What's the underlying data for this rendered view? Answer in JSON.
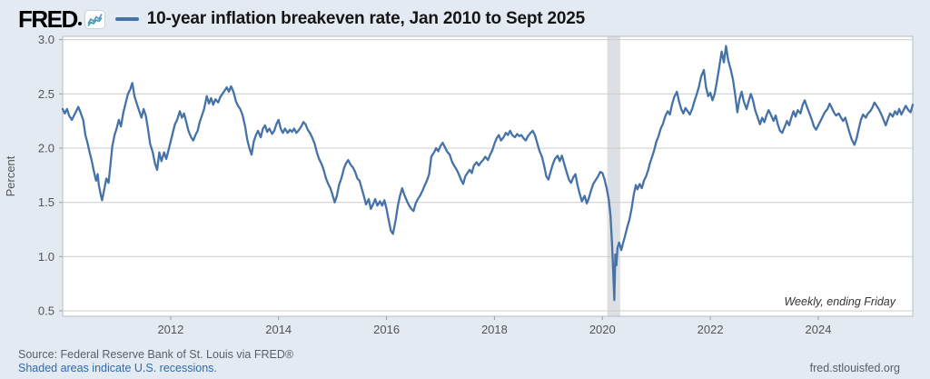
{
  "header": {
    "logo_text": "FRED",
    "title": "10-year inflation breakeven rate, Jan 2010 to Sept 2025"
  },
  "footer": {
    "source": "Source: Federal Reserve Bank of St. Louis via FRED®",
    "recession_note": "Shaded areas indicate U.S. recessions.",
    "url": "fred.stlouisfed.org"
  },
  "chart_data": {
    "type": "line",
    "title": "10-year inflation breakeven rate, Jan 2010 to Sept 2025",
    "series_name": "10-year inflation breakeven rate",
    "ylabel": "Percent",
    "annotation": "Weekly, ending Friday",
    "grid": true,
    "legend_position": "none",
    "xlim": [
      2010.0,
      2025.75
    ],
    "ylim": [
      0.45,
      3.03
    ],
    "yticks": [
      {
        "v": 3.0,
        "label": "3.0"
      },
      {
        "v": 2.5,
        "label": "2.5"
      },
      {
        "v": 2.0,
        "label": "2.0"
      },
      {
        "v": 1.5,
        "label": "1.5"
      },
      {
        "v": 1.0,
        "label": "1.0"
      },
      {
        "v": 0.5,
        "label": "0.5"
      }
    ],
    "xticks": [
      {
        "v": 2012,
        "label": "2012"
      },
      {
        "v": 2014,
        "label": "2014"
      },
      {
        "v": 2016,
        "label": "2016"
      },
      {
        "v": 2018,
        "label": "2018"
      },
      {
        "v": 2020,
        "label": "2020"
      },
      {
        "v": 2022,
        "label": "2022"
      },
      {
        "v": 2024,
        "label": "2024"
      }
    ],
    "recessions": [
      {
        "start": 2020.09,
        "end": 2020.33
      }
    ],
    "colors": {
      "line": "#4572a7",
      "grid": "#cccccc",
      "border": "#b6bcc3",
      "plot_bg": "#ffffff",
      "recession": "#dcdfe4",
      "tick": "#999999",
      "page_bg": "#e3eaf2",
      "link": "#2e6bad"
    },
    "points": [
      [
        2010.0,
        2.36
      ],
      [
        2010.04,
        2.32
      ],
      [
        2010.08,
        2.36
      ],
      [
        2010.12,
        2.3
      ],
      [
        2010.17,
        2.26
      ],
      [
        2010.21,
        2.3
      ],
      [
        2010.25,
        2.34
      ],
      [
        2010.29,
        2.38
      ],
      [
        2010.33,
        2.33
      ],
      [
        2010.38,
        2.26
      ],
      [
        2010.42,
        2.12
      ],
      [
        2010.46,
        2.05
      ],
      [
        2010.5,
        1.96
      ],
      [
        2010.54,
        1.88
      ],
      [
        2010.58,
        1.78
      ],
      [
        2010.62,
        1.7
      ],
      [
        2010.65,
        1.76
      ],
      [
        2010.67,
        1.66
      ],
      [
        2010.71,
        1.56
      ],
      [
        2010.73,
        1.52
      ],
      [
        2010.77,
        1.62
      ],
      [
        2010.81,
        1.72
      ],
      [
        2010.85,
        1.68
      ],
      [
        2010.88,
        1.82
      ],
      [
        2010.92,
        2.02
      ],
      [
        2010.96,
        2.12
      ],
      [
        2011.0,
        2.18
      ],
      [
        2011.04,
        2.26
      ],
      [
        2011.08,
        2.2
      ],
      [
        2011.12,
        2.32
      ],
      [
        2011.17,
        2.42
      ],
      [
        2011.21,
        2.5
      ],
      [
        2011.25,
        2.54
      ],
      [
        2011.29,
        2.6
      ],
      [
        2011.33,
        2.48
      ],
      [
        2011.38,
        2.4
      ],
      [
        2011.42,
        2.34
      ],
      [
        2011.46,
        2.28
      ],
      [
        2011.5,
        2.36
      ],
      [
        2011.54,
        2.3
      ],
      [
        2011.58,
        2.18
      ],
      [
        2011.62,
        2.04
      ],
      [
        2011.67,
        1.96
      ],
      [
        2011.71,
        1.86
      ],
      [
        2011.75,
        1.8
      ],
      [
        2011.79,
        1.96
      ],
      [
        2011.83,
        1.88
      ],
      [
        2011.88,
        1.96
      ],
      [
        2011.92,
        1.9
      ],
      [
        2011.96,
        1.98
      ],
      [
        2012.0,
        2.06
      ],
      [
        2012.04,
        2.14
      ],
      [
        2012.08,
        2.22
      ],
      [
        2012.12,
        2.26
      ],
      [
        2012.17,
        2.34
      ],
      [
        2012.21,
        2.28
      ],
      [
        2012.25,
        2.32
      ],
      [
        2012.29,
        2.24
      ],
      [
        2012.33,
        2.16
      ],
      [
        2012.38,
        2.1
      ],
      [
        2012.42,
        2.07
      ],
      [
        2012.46,
        2.12
      ],
      [
        2012.5,
        2.16
      ],
      [
        2012.54,
        2.24
      ],
      [
        2012.58,
        2.3
      ],
      [
        2012.62,
        2.36
      ],
      [
        2012.67,
        2.48
      ],
      [
        2012.71,
        2.41
      ],
      [
        2012.75,
        2.46
      ],
      [
        2012.79,
        2.4
      ],
      [
        2012.83,
        2.45
      ],
      [
        2012.88,
        2.42
      ],
      [
        2012.92,
        2.47
      ],
      [
        2012.96,
        2.5
      ],
      [
        2013.0,
        2.53
      ],
      [
        2013.04,
        2.56
      ],
      [
        2013.08,
        2.52
      ],
      [
        2013.12,
        2.57
      ],
      [
        2013.17,
        2.51
      ],
      [
        2013.21,
        2.43
      ],
      [
        2013.25,
        2.39
      ],
      [
        2013.29,
        2.36
      ],
      [
        2013.33,
        2.31
      ],
      [
        2013.38,
        2.2
      ],
      [
        2013.42,
        2.08
      ],
      [
        2013.46,
        2.0
      ],
      [
        2013.5,
        1.94
      ],
      [
        2013.54,
        2.06
      ],
      [
        2013.58,
        2.12
      ],
      [
        2013.62,
        2.16
      ],
      [
        2013.67,
        2.1
      ],
      [
        2013.71,
        2.18
      ],
      [
        2013.75,
        2.21
      ],
      [
        2013.79,
        2.15
      ],
      [
        2013.83,
        2.18
      ],
      [
        2013.88,
        2.13
      ],
      [
        2013.92,
        2.16
      ],
      [
        2013.96,
        2.22
      ],
      [
        2014.0,
        2.26
      ],
      [
        2014.04,
        2.18
      ],
      [
        2014.08,
        2.14
      ],
      [
        2014.12,
        2.18
      ],
      [
        2014.17,
        2.14
      ],
      [
        2014.21,
        2.17
      ],
      [
        2014.25,
        2.15
      ],
      [
        2014.29,
        2.18
      ],
      [
        2014.33,
        2.14
      ],
      [
        2014.38,
        2.17
      ],
      [
        2014.42,
        2.2
      ],
      [
        2014.46,
        2.24
      ],
      [
        2014.5,
        2.22
      ],
      [
        2014.54,
        2.17
      ],
      [
        2014.58,
        2.14
      ],
      [
        2014.62,
        2.1
      ],
      [
        2014.67,
        2.04
      ],
      [
        2014.71,
        1.96
      ],
      [
        2014.75,
        1.9
      ],
      [
        2014.79,
        1.86
      ],
      [
        2014.83,
        1.81
      ],
      [
        2014.88,
        1.72
      ],
      [
        2014.92,
        1.67
      ],
      [
        2014.96,
        1.63
      ],
      [
        2015.0,
        1.57
      ],
      [
        2015.04,
        1.5
      ],
      [
        2015.08,
        1.56
      ],
      [
        2015.12,
        1.66
      ],
      [
        2015.17,
        1.73
      ],
      [
        2015.21,
        1.81
      ],
      [
        2015.25,
        1.86
      ],
      [
        2015.29,
        1.89
      ],
      [
        2015.33,
        1.85
      ],
      [
        2015.38,
        1.82
      ],
      [
        2015.42,
        1.78
      ],
      [
        2015.46,
        1.72
      ],
      [
        2015.5,
        1.7
      ],
      [
        2015.54,
        1.63
      ],
      [
        2015.58,
        1.56
      ],
      [
        2015.62,
        1.48
      ],
      [
        2015.67,
        1.53
      ],
      [
        2015.71,
        1.44
      ],
      [
        2015.75,
        1.48
      ],
      [
        2015.79,
        1.53
      ],
      [
        2015.83,
        1.47
      ],
      [
        2015.88,
        1.51
      ],
      [
        2015.92,
        1.47
      ],
      [
        2015.96,
        1.52
      ],
      [
        2016.0,
        1.44
      ],
      [
        2016.04,
        1.34
      ],
      [
        2016.08,
        1.24
      ],
      [
        2016.12,
        1.21
      ],
      [
        2016.17,
        1.34
      ],
      [
        2016.21,
        1.47
      ],
      [
        2016.25,
        1.56
      ],
      [
        2016.29,
        1.63
      ],
      [
        2016.33,
        1.57
      ],
      [
        2016.38,
        1.51
      ],
      [
        2016.42,
        1.47
      ],
      [
        2016.46,
        1.44
      ],
      [
        2016.5,
        1.42
      ],
      [
        2016.54,
        1.49
      ],
      [
        2016.58,
        1.53
      ],
      [
        2016.62,
        1.56
      ],
      [
        2016.67,
        1.61
      ],
      [
        2016.71,
        1.66
      ],
      [
        2016.75,
        1.7
      ],
      [
        2016.79,
        1.76
      ],
      [
        2016.83,
        1.92
      ],
      [
        2016.88,
        1.96
      ],
      [
        2016.92,
        2.0
      ],
      [
        2016.96,
        1.97
      ],
      [
        2017.0,
        2.02
      ],
      [
        2017.04,
        2.05
      ],
      [
        2017.08,
        2.01
      ],
      [
        2017.12,
        1.97
      ],
      [
        2017.17,
        1.94
      ],
      [
        2017.21,
        1.88
      ],
      [
        2017.25,
        1.84
      ],
      [
        2017.29,
        1.81
      ],
      [
        2017.33,
        1.77
      ],
      [
        2017.38,
        1.71
      ],
      [
        2017.42,
        1.67
      ],
      [
        2017.46,
        1.74
      ],
      [
        2017.5,
        1.77
      ],
      [
        2017.54,
        1.8
      ],
      [
        2017.58,
        1.77
      ],
      [
        2017.62,
        1.84
      ],
      [
        2017.67,
        1.87
      ],
      [
        2017.71,
        1.84
      ],
      [
        2017.75,
        1.87
      ],
      [
        2017.79,
        1.89
      ],
      [
        2017.83,
        1.92
      ],
      [
        2017.88,
        1.89
      ],
      [
        2017.92,
        1.94
      ],
      [
        2017.96,
        1.98
      ],
      [
        2018.0,
        2.04
      ],
      [
        2018.04,
        2.09
      ],
      [
        2018.08,
        2.12
      ],
      [
        2018.12,
        2.07
      ],
      [
        2018.17,
        2.1
      ],
      [
        2018.21,
        2.14
      ],
      [
        2018.25,
        2.12
      ],
      [
        2018.29,
        2.16
      ],
      [
        2018.33,
        2.12
      ],
      [
        2018.38,
        2.1
      ],
      [
        2018.42,
        2.13
      ],
      [
        2018.46,
        2.11
      ],
      [
        2018.5,
        2.12
      ],
      [
        2018.54,
        2.09
      ],
      [
        2018.58,
        2.07
      ],
      [
        2018.62,
        2.11
      ],
      [
        2018.67,
        2.14
      ],
      [
        2018.71,
        2.16
      ],
      [
        2018.75,
        2.12
      ],
      [
        2018.79,
        2.05
      ],
      [
        2018.83,
        1.98
      ],
      [
        2018.88,
        1.92
      ],
      [
        2018.92,
        1.84
      ],
      [
        2018.96,
        1.74
      ],
      [
        2019.0,
        1.71
      ],
      [
        2019.04,
        1.78
      ],
      [
        2019.08,
        1.85
      ],
      [
        2019.12,
        1.9
      ],
      [
        2019.17,
        1.93
      ],
      [
        2019.21,
        1.88
      ],
      [
        2019.25,
        1.93
      ],
      [
        2019.29,
        1.86
      ],
      [
        2019.33,
        1.79
      ],
      [
        2019.38,
        1.71
      ],
      [
        2019.42,
        1.68
      ],
      [
        2019.46,
        1.73
      ],
      [
        2019.5,
        1.76
      ],
      [
        2019.54,
        1.66
      ],
      [
        2019.58,
        1.58
      ],
      [
        2019.62,
        1.51
      ],
      [
        2019.67,
        1.56
      ],
      [
        2019.71,
        1.49
      ],
      [
        2019.75,
        1.54
      ],
      [
        2019.79,
        1.61
      ],
      [
        2019.83,
        1.67
      ],
      [
        2019.88,
        1.71
      ],
      [
        2019.92,
        1.74
      ],
      [
        2019.96,
        1.78
      ],
      [
        2020.0,
        1.77
      ],
      [
        2020.04,
        1.71
      ],
      [
        2020.08,
        1.63
      ],
      [
        2020.12,
        1.52
      ],
      [
        2020.15,
        1.38
      ],
      [
        2020.18,
        1.1
      ],
      [
        2020.21,
        0.73
      ],
      [
        2020.22,
        0.6
      ],
      [
        2020.24,
        1.02
      ],
      [
        2020.26,
        0.92
      ],
      [
        2020.28,
        1.08
      ],
      [
        2020.31,
        1.13
      ],
      [
        2020.35,
        1.06
      ],
      [
        2020.38,
        1.12
      ],
      [
        2020.42,
        1.19
      ],
      [
        2020.46,
        1.27
      ],
      [
        2020.5,
        1.34
      ],
      [
        2020.54,
        1.44
      ],
      [
        2020.58,
        1.57
      ],
      [
        2020.62,
        1.66
      ],
      [
        2020.65,
        1.62
      ],
      [
        2020.69,
        1.67
      ],
      [
        2020.73,
        1.63
      ],
      [
        2020.77,
        1.7
      ],
      [
        2020.81,
        1.74
      ],
      [
        2020.85,
        1.8
      ],
      [
        2020.88,
        1.86
      ],
      [
        2020.92,
        1.92
      ],
      [
        2020.96,
        1.98
      ],
      [
        2021.0,
        2.06
      ],
      [
        2021.04,
        2.11
      ],
      [
        2021.08,
        2.18
      ],
      [
        2021.12,
        2.22
      ],
      [
        2021.17,
        2.3
      ],
      [
        2021.21,
        2.34
      ],
      [
        2021.25,
        2.31
      ],
      [
        2021.29,
        2.4
      ],
      [
        2021.33,
        2.47
      ],
      [
        2021.38,
        2.52
      ],
      [
        2021.42,
        2.43
      ],
      [
        2021.46,
        2.36
      ],
      [
        2021.5,
        2.32
      ],
      [
        2021.54,
        2.37
      ],
      [
        2021.58,
        2.34
      ],
      [
        2021.62,
        2.31
      ],
      [
        2021.67,
        2.37
      ],
      [
        2021.71,
        2.44
      ],
      [
        2021.75,
        2.5
      ],
      [
        2021.79,
        2.57
      ],
      [
        2021.83,
        2.66
      ],
      [
        2021.88,
        2.72
      ],
      [
        2021.92,
        2.56
      ],
      [
        2021.96,
        2.48
      ],
      [
        2022.0,
        2.51
      ],
      [
        2022.04,
        2.44
      ],
      [
        2022.08,
        2.5
      ],
      [
        2022.12,
        2.61
      ],
      [
        2022.17,
        2.76
      ],
      [
        2022.21,
        2.89
      ],
      [
        2022.25,
        2.79
      ],
      [
        2022.29,
        2.94
      ],
      [
        2022.33,
        2.81
      ],
      [
        2022.38,
        2.72
      ],
      [
        2022.42,
        2.63
      ],
      [
        2022.46,
        2.49
      ],
      [
        2022.5,
        2.33
      ],
      [
        2022.54,
        2.45
      ],
      [
        2022.58,
        2.52
      ],
      [
        2022.62,
        2.43
      ],
      [
        2022.67,
        2.36
      ],
      [
        2022.71,
        2.43
      ],
      [
        2022.75,
        2.5
      ],
      [
        2022.79,
        2.44
      ],
      [
        2022.83,
        2.35
      ],
      [
        2022.88,
        2.28
      ],
      [
        2022.92,
        2.22
      ],
      [
        2022.96,
        2.28
      ],
      [
        2023.0,
        2.24
      ],
      [
        2023.04,
        2.3
      ],
      [
        2023.08,
        2.35
      ],
      [
        2023.12,
        2.31
      ],
      [
        2023.17,
        2.25
      ],
      [
        2023.21,
        2.3
      ],
      [
        2023.25,
        2.22
      ],
      [
        2023.29,
        2.16
      ],
      [
        2023.33,
        2.14
      ],
      [
        2023.38,
        2.2
      ],
      [
        2023.42,
        2.25
      ],
      [
        2023.46,
        2.21
      ],
      [
        2023.5,
        2.28
      ],
      [
        2023.54,
        2.34
      ],
      [
        2023.58,
        2.29
      ],
      [
        2023.62,
        2.35
      ],
      [
        2023.67,
        2.32
      ],
      [
        2023.71,
        2.4
      ],
      [
        2023.75,
        2.44
      ],
      [
        2023.79,
        2.38
      ],
      [
        2023.83,
        2.33
      ],
      [
        2023.88,
        2.26
      ],
      [
        2023.92,
        2.2
      ],
      [
        2023.96,
        2.17
      ],
      [
        2024.0,
        2.21
      ],
      [
        2024.04,
        2.25
      ],
      [
        2024.08,
        2.29
      ],
      [
        2024.12,
        2.33
      ],
      [
        2024.17,
        2.36
      ],
      [
        2024.21,
        2.41
      ],
      [
        2024.25,
        2.37
      ],
      [
        2024.29,
        2.33
      ],
      [
        2024.33,
        2.3
      ],
      [
        2024.38,
        2.32
      ],
      [
        2024.42,
        2.28
      ],
      [
        2024.46,
        2.25
      ],
      [
        2024.5,
        2.28
      ],
      [
        2024.54,
        2.21
      ],
      [
        2024.58,
        2.14
      ],
      [
        2024.62,
        2.08
      ],
      [
        2024.67,
        2.03
      ],
      [
        2024.71,
        2.09
      ],
      [
        2024.75,
        2.18
      ],
      [
        2024.79,
        2.26
      ],
      [
        2024.83,
        2.31
      ],
      [
        2024.88,
        2.28
      ],
      [
        2024.92,
        2.32
      ],
      [
        2024.96,
        2.34
      ],
      [
        2025.0,
        2.37
      ],
      [
        2025.04,
        2.42
      ],
      [
        2025.08,
        2.39
      ],
      [
        2025.12,
        2.36
      ],
      [
        2025.17,
        2.31
      ],
      [
        2025.21,
        2.26
      ],
      [
        2025.25,
        2.21
      ],
      [
        2025.29,
        2.27
      ],
      [
        2025.33,
        2.32
      ],
      [
        2025.38,
        2.29
      ],
      [
        2025.42,
        2.34
      ],
      [
        2025.46,
        2.31
      ],
      [
        2025.5,
        2.36
      ],
      [
        2025.54,
        2.31
      ],
      [
        2025.58,
        2.35
      ],
      [
        2025.62,
        2.39
      ],
      [
        2025.67,
        2.35
      ],
      [
        2025.71,
        2.33
      ],
      [
        2025.75,
        2.4
      ]
    ]
  }
}
